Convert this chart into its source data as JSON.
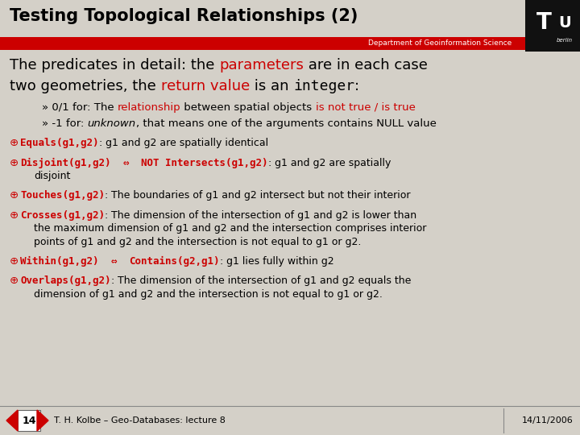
{
  "bg_color": "#d4d0c8",
  "title": "Testing Topological Relationships (2)",
  "title_color": "#000000",
  "title_fontsize": 15,
  "header_bar_color": "#cc0000",
  "dept_text": "Department of Geoinformation Science",
  "dept_color": "#ffffff",
  "dept_fontsize": 6.5,
  "intro_line1_parts": [
    {
      "text": "The predicates in detail: the ",
      "color": "#000000",
      "bold": false,
      "italic": false,
      "mono": false
    },
    {
      "text": "parameters",
      "color": "#cc0000",
      "bold": false,
      "italic": false,
      "mono": false
    },
    {
      "text": " are in each case",
      "color": "#000000",
      "bold": false,
      "italic": false,
      "mono": false
    }
  ],
  "intro_line2_parts": [
    {
      "text": "two geometries, the ",
      "color": "#000000",
      "bold": false,
      "italic": false,
      "mono": false
    },
    {
      "text": "return value",
      "color": "#cc0000",
      "bold": false,
      "italic": false,
      "mono": false
    },
    {
      "text": " is an ",
      "color": "#000000",
      "bold": false,
      "italic": false,
      "mono": false
    },
    {
      "text": "integer",
      "color": "#000000",
      "bold": false,
      "italic": false,
      "mono": true
    },
    {
      "text": ":",
      "color": "#000000",
      "bold": false,
      "italic": false,
      "mono": false
    }
  ],
  "bullet1_parts": [
    {
      "text": "» 0/1 for: The ",
      "color": "#000000",
      "bold": false,
      "italic": false,
      "mono": false
    },
    {
      "text": "relationship",
      "color": "#cc0000",
      "bold": false,
      "italic": false,
      "mono": false
    },
    {
      "text": " between spatial objects ",
      "color": "#000000",
      "bold": false,
      "italic": false,
      "mono": false
    },
    {
      "text": "is not true / is true",
      "color": "#cc0000",
      "bold": false,
      "italic": false,
      "mono": false
    }
  ],
  "bullet2_parts": [
    {
      "text": "» -1 for: ",
      "color": "#000000",
      "bold": false,
      "italic": false,
      "mono": false
    },
    {
      "text": "unknown",
      "color": "#000000",
      "bold": false,
      "italic": true,
      "mono": false
    },
    {
      "text": ", that means one of the arguments contains NULL value",
      "color": "#000000",
      "bold": false,
      "italic": false,
      "mono": false
    }
  ],
  "items": [
    {
      "code": "Equals(g1,g2)",
      "arrow": "",
      "code2": "",
      "sep": ": ",
      "desc_lines": [
        "g1 and g2 are spatially identical"
      ]
    },
    {
      "code": "Disjoint(g1,g2)",
      "arrow": "  ⇔  ",
      "code2": "NOT Intersects(g1,g2)",
      "sep": ": ",
      "desc_lines": [
        "g1 and g2 are spatially",
        "disjoint"
      ]
    },
    {
      "code": "Touches(g1,g2)",
      "arrow": "",
      "code2": "",
      "sep": ": ",
      "desc_lines": [
        "The boundaries of g1 and g2 intersect but not their interior"
      ]
    },
    {
      "code": "Crosses(g1,g2)",
      "arrow": "",
      "code2": "",
      "sep": ": ",
      "desc_lines": [
        "The dimension of the intersection of g1 and g2 is lower than",
        "the maximum dimension of g1 and g2 and the intersection comprises interior",
        "points of g1 and g2 and the intersection is not equal to g1 or g2."
      ]
    },
    {
      "code": "Within(g1,g2)",
      "arrow": "  ⇔  ",
      "code2": "Contains(g2,g1)",
      "sep": ": ",
      "desc_lines": [
        "g1 lies fully within g2"
      ]
    },
    {
      "code": "Overlaps(g1,g2)",
      "arrow": "",
      "code2": "",
      "sep": ": ",
      "desc_lines": [
        "The dimension of the intersection of g1 and g2 equals the",
        "dimension of g1 and g2 and the intersection is not equal to g1 or g2."
      ]
    }
  ],
  "footer_left": "T. H. Kolbe – Geo-Databases: lecture 8",
  "footer_right": "14/11/2006",
  "footer_page": "14",
  "code_color": "#cc0000",
  "desc_color": "#000000"
}
